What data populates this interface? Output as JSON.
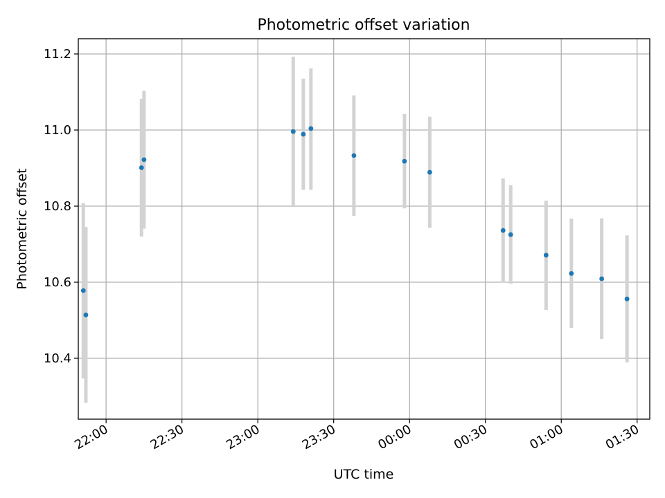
{
  "chart_data": {
    "type": "scatter",
    "title": "Photometric offset variation",
    "xlabel": "UTC time",
    "ylabel": "Photometric offset",
    "x_axis_kind": "time",
    "xlim": [
      "21:49",
      "01:35"
    ],
    "ylim": [
      10.24,
      11.24
    ],
    "grid": true,
    "x_ticks": [
      "22:00",
      "22:30",
      "23:00",
      "23:30",
      "00:00",
      "00:30",
      "01:00",
      "01:30"
    ],
    "y_ticks": [
      "10.4",
      "10.6",
      "10.8",
      "11.0",
      "11.2"
    ],
    "marker_color": "#1f77b4",
    "errorbar_color": "#d3d3d3",
    "points": [
      {
        "time": "21:51",
        "value": 10.578,
        "err_low": 10.347,
        "err_high": 10.808
      },
      {
        "time": "21:52",
        "value": 10.514,
        "err_low": 10.283,
        "err_high": 10.745
      },
      {
        "time": "22:14",
        "value": 10.901,
        "err_low": 10.72,
        "err_high": 11.082
      },
      {
        "time": "22:15",
        "value": 10.922,
        "err_low": 10.741,
        "err_high": 11.103
      },
      {
        "time": "23:14",
        "value": 10.996,
        "err_low": 10.8,
        "err_high": 11.193
      },
      {
        "time": "23:18",
        "value": 10.989,
        "err_low": 10.843,
        "err_high": 11.135
      },
      {
        "time": "23:21",
        "value": 11.004,
        "err_low": 10.843,
        "err_high": 11.162
      },
      {
        "time": "23:38",
        "value": 10.933,
        "err_low": 10.774,
        "err_high": 11.091
      },
      {
        "time": "23:58",
        "value": 10.918,
        "err_low": 10.794,
        "err_high": 11.042
      },
      {
        "time": "00:08",
        "value": 10.889,
        "err_low": 10.743,
        "err_high": 11.035
      },
      {
        "time": "00:37",
        "value": 10.736,
        "err_low": 10.599,
        "err_high": 10.873
      },
      {
        "time": "00:40",
        "value": 10.725,
        "err_low": 10.596,
        "err_high": 10.855
      },
      {
        "time": "00:54",
        "value": 10.671,
        "err_low": 10.527,
        "err_high": 10.814
      },
      {
        "time": "01:04",
        "value": 10.623,
        "err_low": 10.48,
        "err_high": 10.767
      },
      {
        "time": "01:16",
        "value": 10.609,
        "err_low": 10.451,
        "err_high": 10.768
      },
      {
        "time": "01:26",
        "value": 10.556,
        "err_low": 10.389,
        "err_high": 10.723
      }
    ]
  }
}
